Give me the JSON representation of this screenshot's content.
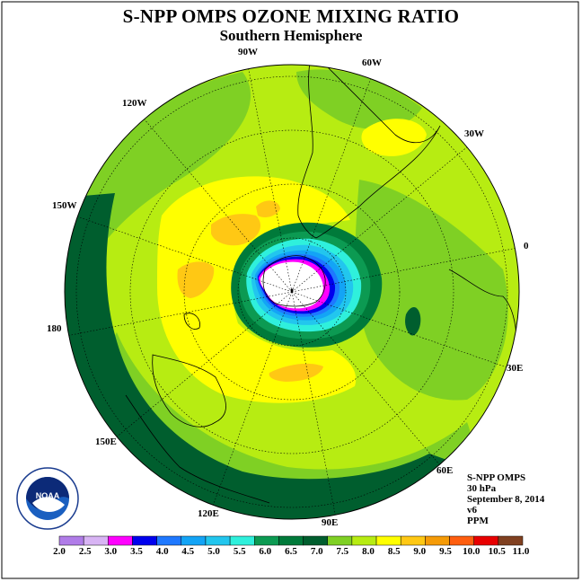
{
  "title": "S-NPP OMPS OZONE MIXING RATIO",
  "subtitle": "Southern Hemisphere",
  "longitude_labels": [
    {
      "label": "90W",
      "lon": -90
    },
    {
      "label": "60W",
      "lon": -60
    },
    {
      "label": "30W",
      "lon": -30
    },
    {
      "label": "0",
      "lon": 0
    },
    {
      "label": "30E",
      "lon": 30
    },
    {
      "label": "60E",
      "lon": 60
    },
    {
      "label": "90E",
      "lon": 90
    },
    {
      "label": "120E",
      "lon": 120
    },
    {
      "label": "150E",
      "lon": 150
    },
    {
      "label": "180",
      "lon": 180
    },
    {
      "label": "150W",
      "lon": -150
    },
    {
      "label": "120W",
      "lon": -120
    }
  ],
  "info": {
    "instrument": "S-NPP OMPS",
    "level": "30 hPa",
    "date": "September 8, 2014",
    "version": "v6",
    "units": "PPM"
  },
  "logo_text": "NOAA",
  "colorbar": {
    "labels": [
      "2.0",
      "2.5",
      "3.0",
      "3.5",
      "4.0",
      "4.5",
      "5.0",
      "5.5",
      "6.0",
      "6.5",
      "7.0",
      "7.5",
      "8.0",
      "8.5",
      "9.0",
      "9.5",
      "10.0",
      "10.5",
      "11.0"
    ],
    "colors": [
      "#b07ce8",
      "#d8b4f4",
      "#ff00ff",
      "#0000ee",
      "#1e78ff",
      "#13a4f6",
      "#22c6ee",
      "#2ff0dc",
      "#0c9a52",
      "#007a3a",
      "#005e2e",
      "#7fd024",
      "#b7ec12",
      "#ffff00",
      "#ffc814",
      "#f59b07",
      "#ff5e0f",
      "#e80000",
      "#804020"
    ]
  },
  "map_colors": {
    "c7_0": "#005e2e",
    "c7_5": "#7fd024",
    "c8_0": "#b7ec12",
    "c8_5": "#ffff00",
    "c9_0": "#ffc814",
    "c6_5": "#007a3a",
    "c6_0": "#0c9a52",
    "c5_5": "#2ff0dc",
    "c5_0": "#22c6ee",
    "c4_5": "#13a4f6",
    "c4_0": "#1e78ff",
    "c3_5": "#0000ee",
    "c3_0": "#ff00ff",
    "c2_0": "#ffffff"
  }
}
